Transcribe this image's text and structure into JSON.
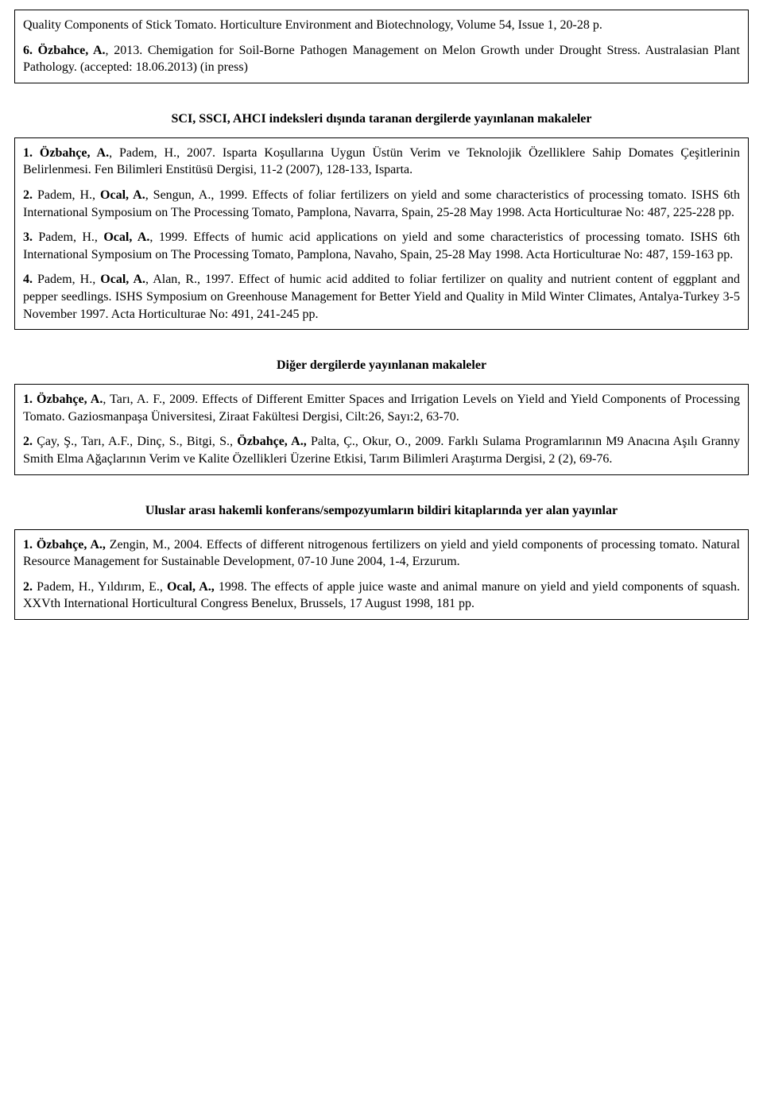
{
  "box1": {
    "p1": "Quality Components of Stick Tomato. Horticulture Environment and Biotechnology, Volume 54, Issue 1, 20-28 p.",
    "entry6": "6.",
    "author6": " Özbahce, A.",
    "rest6": ", 2013. Chemigation for Soil-Borne Pathogen Management on Melon Growth under Drought Stress. Australasian Plant Pathology. (accepted: 18.06.2013) (in press)"
  },
  "section1_title": "SCI, SSCI, AHCI indeksleri dışında taranan dergilerde yayınlanan makaleler",
  "box2": {
    "e1": "1.",
    "a1": " Özbahçe, A.",
    "r1": ", Padem, H., 2007. Isparta Koşullarına Uygun Üstün Verim ve Teknolojik Özelliklere Sahip Domates Çeşitlerinin Belirlenmesi. Fen Bilimleri Enstitüsü Dergisi, 11-2 (2007), 128-133, Isparta.",
    "e2": "2.",
    "a2_pre": " Padem, H., ",
    "a2": "Ocal, A.",
    "r2": ", Sengun, A., 1999. Effects of foliar fertilizers on yield and some characteristics of processing tomato. ISHS 6th International Symposium on The Processing Tomato, Pamplona, Navarra, Spain, 25-28 May 1998. Acta Horticulturae No: 487, 225-228 pp.",
    "e3": "3.",
    "a3_pre": " Padem, H., ",
    "a3": "Ocal, A.",
    "r3": ", 1999. Effects of humic acid applications on yield and some characteristics of processing tomato. ISHS 6th International Symposium on The Processing Tomato, Pamplona, Navaho, Spain, 25-28 May 1998. Acta Horticulturae No: 487, 159-163 pp.",
    "e4": "4.",
    "a4_pre": " Padem, H., ",
    "a4": "Ocal, A.",
    "r4": ", Alan, R., 1997. Effect of humic acid addited to foliar fertilizer on quality and nutrient content of eggplant and pepper seedlings. ISHS Symposium on Greenhouse Management for Better Yield and Quality in Mild Winter Climates, Antalya-Turkey 3-5 November 1997. Acta Horticulturae No: 491, 241-245 pp."
  },
  "section2_title": "Diğer dergilerde yayınlanan makaleler",
  "box3": {
    "e1": "1.",
    "a1": " Özbahçe, A.",
    "r1": ", Tarı, A. F., 2009. Effects of Different Emitter Spaces and Irrigation Levels on Yield and Yield Components of Processing Tomato. Gaziosmanpaşa Üniversitesi, Ziraat Fakültesi Dergisi, Cilt:26, Sayı:2, 63-70.",
    "e2": "2.",
    "r2_pre": " Çay, Ş., Tarı, A.F., Dinç, S., Bitgi, S., ",
    "a2": "Özbahçe, A.,",
    "r2": " Palta, Ç., Okur, O., 2009. Farklı Sulama Programlarının M9 Anacına Aşılı Granny Smith Elma Ağaçlarının Verim ve Kalite Özellikleri Üzerine Etkisi, Tarım Bilimleri Araştırma Dergisi, 2 (2), 69-76."
  },
  "section3_title": "Uluslar arası hakemli konferans/sempozyumların bildiri kitaplarında yer alan yayınlar",
  "box4": {
    "e1": "1.",
    "a1": " Özbahçe, A.,",
    "r1": " Zengin, M., 2004. Effects of different nitrogenous fertilizers on yield and yield components of processing tomato. Natural Resource Management for Sustainable Development, 07-10 June 2004, 1-4, Erzurum.",
    "e2": "2.",
    "r2_pre": " Padem, H., Yıldırım, E., ",
    "a2": "Ocal, A.,",
    "r2": " 1998. The effects of apple juice waste and animal manure on yield and yield components of squash. XXVth International Horticultural Congress Benelux, Brussels, 17 August 1998, 181 pp."
  }
}
